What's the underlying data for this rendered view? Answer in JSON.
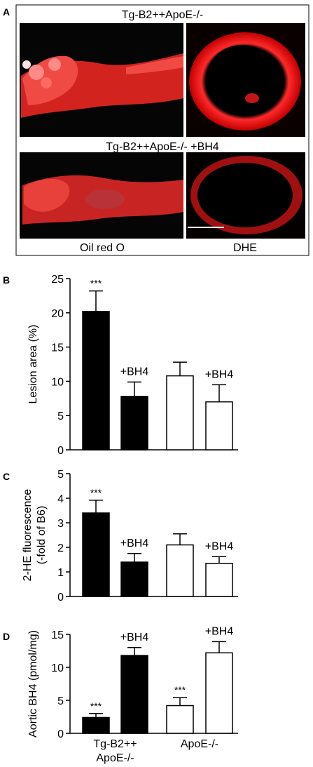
{
  "panel_a": {
    "letter": "A",
    "top_label": "Tg-B2++ApoE-/-",
    "middle_label": "Tg-B2++ApoE-/- +BH4",
    "bottom_left_label": "Oil red O",
    "bottom_right_label": "DHE"
  },
  "chart_data": [
    {
      "type": "bar",
      "letter": "B",
      "ylabel": [
        "Lesion area (%)"
      ],
      "ylim": [
        0,
        25
      ],
      "yticks": [
        0,
        5,
        10,
        15,
        20,
        25
      ],
      "values": [
        20.2,
        7.8,
        10.8,
        7.0
      ],
      "errors": [
        3.0,
        2.1,
        2.0,
        2.5
      ],
      "fills": [
        "#000000",
        "#000000",
        "#ffffff",
        "#ffffff"
      ],
      "annotations": [
        "***",
        "+BH4",
        "",
        "+BH4"
      ]
    },
    {
      "type": "bar",
      "letter": "C",
      "ylabel": [
        "2-HE fluorescence",
        "(-fold of B6)"
      ],
      "ylim": [
        0,
        5
      ],
      "yticks": [
        0,
        1,
        2,
        3,
        4,
        5
      ],
      "values": [
        3.4,
        1.4,
        2.1,
        1.35
      ],
      "errors": [
        0.52,
        0.35,
        0.45,
        0.27
      ],
      "fills": [
        "#000000",
        "#000000",
        "#ffffff",
        "#ffffff"
      ],
      "annotations": [
        "***",
        "+BH4",
        "",
        "+BH4"
      ]
    },
    {
      "type": "bar",
      "letter": "D",
      "ylabel": [
        "Aortic BH4 (pmol/mg)"
      ],
      "ylim": [
        0,
        15
      ],
      "yticks": [
        0,
        5,
        10,
        15
      ],
      "values": [
        2.4,
        11.8,
        4.2,
        12.2
      ],
      "errors": [
        0.6,
        1.2,
        1.2,
        1.7
      ],
      "fills": [
        "#000000",
        "#000000",
        "#ffffff",
        "#ffffff"
      ],
      "annotations": [
        "***",
        "+BH4",
        "***",
        "+BH4"
      ],
      "group_labels": [
        [
          "Tg-B2++",
          "ApoE-/-"
        ],
        [
          "ApoE-/-"
        ]
      ]
    }
  ]
}
